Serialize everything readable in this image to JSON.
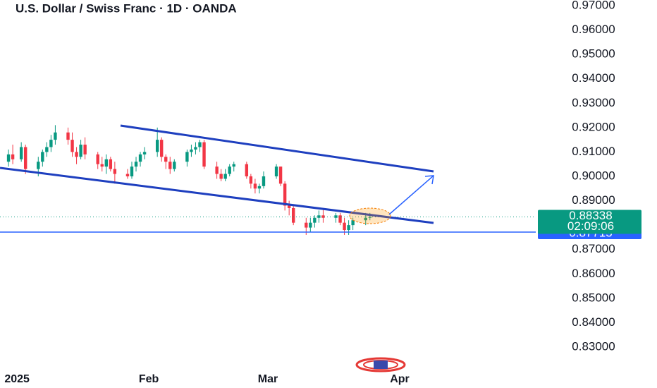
{
  "chart_data": {
    "type": "candlestick",
    "title": "U.S. Dollar / Swiss Franc · 1D · OANDA",
    "x": [
      -1,
      0,
      2,
      3,
      6,
      7,
      8,
      9,
      10,
      13,
      14,
      15,
      16,
      17,
      20,
      21,
      22,
      23,
      24,
      27,
      28,
      29,
      30,
      31,
      34,
      35,
      36,
      37,
      38,
      41,
      42,
      43,
      44,
      45,
      48,
      49,
      50,
      51,
      52,
      55,
      56,
      57,
      58,
      59,
      62,
      63,
      64,
      65,
      66,
      69,
      70,
      71,
      72,
      73,
      76,
      77,
      78,
      79,
      80,
      83,
      84
    ],
    "open": [
      0.906,
      0.909,
      0.907,
      0.912,
      0.903,
      0.906,
      0.91,
      0.912,
      0.915,
      0.918,
      0.915,
      0.91,
      0.908,
      0.913,
      0.909,
      0.905,
      0.904,
      0.907,
      0.903,
      0.901,
      0.9,
      0.904,
      0.906,
      0.909,
      0.91,
      0.915,
      0.908,
      0.906,
      0.903,
      0.906,
      0.91,
      0.911,
      0.912,
      0.914,
      0.904,
      0.901,
      0.899,
      0.901,
      0.904,
      0.905,
      0.9,
      0.897,
      0.895,
      0.896,
      0.9,
      0.904,
      0.897,
      0.888,
      0.887,
      0.881,
      0.879,
      0.881,
      0.883,
      0.884,
      0.883,
      0.884,
      0.881,
      0.878,
      0.88,
      0.882,
      0.883
    ],
    "high": [
      0.911,
      0.913,
      0.914,
      0.913,
      0.908,
      0.911,
      0.914,
      0.917,
      0.921,
      0.92,
      0.918,
      0.912,
      0.915,
      0.916,
      0.91,
      0.908,
      0.909,
      0.908,
      0.906,
      0.903,
      0.906,
      0.908,
      0.91,
      0.912,
      0.92,
      0.916,
      0.909,
      0.908,
      0.907,
      0.911,
      0.913,
      0.914,
      0.915,
      0.915,
      0.906,
      0.903,
      0.903,
      0.905,
      0.906,
      0.906,
      0.901,
      0.899,
      0.897,
      0.902,
      0.905,
      0.904,
      0.898,
      0.89,
      0.888,
      0.883,
      0.883,
      0.884,
      0.886,
      0.887,
      0.885,
      0.885,
      0.883,
      0.882,
      0.883,
      0.885,
      0.885
    ],
    "low": [
      0.904,
      0.905,
      0.906,
      0.901,
      0.9,
      0.904,
      0.908,
      0.91,
      0.913,
      0.913,
      0.908,
      0.905,
      0.907,
      0.907,
      0.903,
      0.902,
      0.901,
      0.902,
      0.897,
      0.899,
      0.899,
      0.902,
      0.904,
      0.907,
      0.908,
      0.906,
      0.903,
      0.901,
      0.902,
      0.904,
      0.908,
      0.909,
      0.91,
      0.903,
      0.899,
      0.898,
      0.898,
      0.9,
      0.902,
      0.899,
      0.895,
      0.893,
      0.893,
      0.895,
      0.899,
      0.896,
      0.886,
      0.884,
      0.88,
      0.876,
      0.877,
      0.879,
      0.881,
      0.881,
      0.881,
      0.88,
      0.876,
      0.876,
      0.878,
      0.88,
      0.882
    ],
    "close": [
      0.909,
      0.907,
      0.912,
      0.903,
      0.906,
      0.91,
      0.912,
      0.915,
      0.918,
      0.915,
      0.91,
      0.908,
      0.913,
      0.909,
      0.905,
      0.904,
      0.907,
      0.903,
      0.901,
      0.9,
      0.904,
      0.906,
      0.909,
      0.91,
      0.915,
      0.908,
      0.906,
      0.903,
      0.906,
      0.91,
      0.911,
      0.912,
      0.914,
      0.904,
      0.901,
      0.899,
      0.901,
      0.904,
      0.905,
      0.9,
      0.897,
      0.895,
      0.896,
      0.9,
      0.904,
      0.897,
      0.888,
      0.887,
      0.881,
      0.879,
      0.881,
      0.883,
      0.884,
      0.883,
      0.884,
      0.881,
      0.878,
      0.88,
      0.882,
      0.883,
      0.88338
    ],
    "up_color": "#089981",
    "down_color": "#f23645",
    "xlim": [
      -3,
      123
    ],
    "xticks": [
      {
        "value": 1,
        "label": "2025"
      },
      {
        "value": 32,
        "label": "Feb"
      },
      {
        "value": 60,
        "label": "Mar"
      },
      {
        "value": 91,
        "label": "Apr"
      }
    ],
    "ylim": [
      0.8219,
      0.97231
    ],
    "yticks": [
      {
        "value": 0.97,
        "label": "0.97000"
      },
      {
        "value": 0.96,
        "label": "0.96000"
      },
      {
        "value": 0.95,
        "label": "0.95000"
      },
      {
        "value": 0.94,
        "label": "0.94000"
      },
      {
        "value": 0.93,
        "label": "0.93000"
      },
      {
        "value": 0.92,
        "label": "0.92000"
      },
      {
        "value": 0.91,
        "label": "0.91000"
      },
      {
        "value": 0.9,
        "label": "0.90000"
      },
      {
        "value": 0.89,
        "label": "0.89000"
      },
      {
        "value": 0.88,
        "label": "0.88000"
      },
      {
        "value": 0.87,
        "label": "0.87000"
      },
      {
        "value": 0.86,
        "label": "0.86000"
      },
      {
        "value": 0.85,
        "label": "0.85000"
      },
      {
        "value": 0.84,
        "label": "0.84000"
      },
      {
        "value": 0.83,
        "label": "0.83000"
      }
    ],
    "last_price": {
      "value": 0.88338,
      "countdown": "02:09:06",
      "color": "#089981"
    },
    "level_line": {
      "value": 0.87715,
      "color": "#2962ff"
    }
  }
}
